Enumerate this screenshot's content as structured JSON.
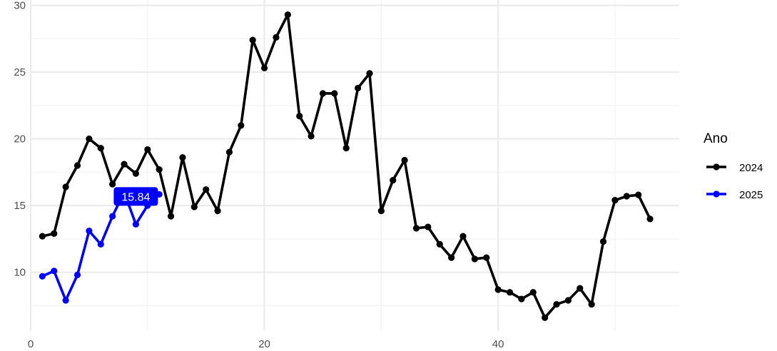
{
  "chart_data": {
    "type": "line",
    "title": "",
    "xlabel": "",
    "ylabel": "",
    "xlim": [
      0,
      55.5
    ],
    "ylim": [
      5.6,
      30.4
    ],
    "x_ticks": [
      0,
      20,
      40
    ],
    "x_tick_labels": [
      "0",
      "20",
      "40"
    ],
    "y_ticks": [
      10,
      15,
      20,
      25,
      30
    ],
    "y_tick_labels": [
      "10",
      "15",
      "20",
      "25",
      "30"
    ],
    "grid": true,
    "legend": {
      "title": "Ano",
      "position": "right",
      "entries": [
        "2024",
        "2025"
      ]
    },
    "series": [
      {
        "name": "2024",
        "color": "#000000",
        "x": [
          1,
          2,
          3,
          4,
          5,
          6,
          7,
          8,
          9,
          10,
          11,
          12,
          13,
          14,
          15,
          16,
          17,
          18,
          19,
          20,
          21,
          22,
          23,
          24,
          25,
          26,
          27,
          28,
          29,
          30,
          31,
          32,
          33,
          34,
          35,
          36,
          37,
          38,
          39,
          40,
          41,
          42,
          43,
          44,
          45,
          46,
          47,
          48,
          49,
          50,
          51,
          52,
          53
        ],
        "values": [
          12.7,
          12.9,
          16.4,
          18.0,
          20.0,
          19.3,
          16.6,
          18.1,
          17.4,
          19.2,
          17.7,
          14.2,
          18.6,
          14.9,
          16.2,
          14.6,
          19.0,
          21.0,
          27.4,
          25.3,
          27.6,
          29.3,
          21.7,
          20.2,
          23.4,
          23.4,
          19.3,
          23.8,
          24.9,
          14.6,
          16.9,
          18.4,
          13.3,
          13.4,
          12.1,
          11.1,
          12.7,
          11.0,
          11.1,
          8.7,
          8.5,
          8.0,
          8.5,
          6.6,
          7.6,
          7.9,
          8.8,
          7.6,
          12.3,
          15.4,
          15.7,
          15.8,
          14.0
        ]
      },
      {
        "name": "2025",
        "color": "#0000ff",
        "x": [
          1,
          2,
          3,
          4,
          5,
          6,
          7,
          8,
          9,
          10,
          11
        ],
        "values": [
          9.7,
          10.1,
          7.9,
          9.8,
          13.1,
          12.1,
          14.2,
          16.0,
          13.6,
          15.0,
          15.84
        ]
      }
    ],
    "annotation": {
      "series": "2025",
      "x": 11,
      "y": 15.84,
      "label": "15.84",
      "color": "#0000ff"
    }
  }
}
